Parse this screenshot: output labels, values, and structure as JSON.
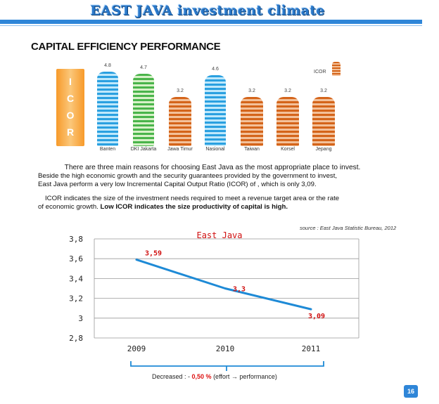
{
  "header": {
    "title": "EAST JAVA investment climate"
  },
  "section_title": "CAPITAL EFFICIENCY PERFORMANCE",
  "icor_strip": {
    "letters": [
      "I",
      "C",
      "O",
      "R"
    ]
  },
  "buildings": {
    "legend_label": "ICOR",
    "items": [
      {
        "name": "Banten",
        "value": "4.8",
        "kind": "blue",
        "v": 4.8
      },
      {
        "name": "DKI Jakarta",
        "value": "4.7",
        "kind": "green",
        "v": 4.7
      },
      {
        "name": "Jawa Timur",
        "value": "3.2",
        "kind": "orange",
        "v": 3.2
      },
      {
        "name": "Nasional",
        "value": "4.6",
        "kind": "blue",
        "v": 4.6
      },
      {
        "name": "Taiwan",
        "value": "3.2",
        "kind": "orange",
        "v": 3.2
      },
      {
        "name": "Korsel",
        "value": "3.2",
        "kind": "orange",
        "v": 3.2
      },
      {
        "name": "Jepang",
        "value": "3.2",
        "kind": "orange",
        "v": 3.2
      }
    ]
  },
  "paragraph1": {
    "line1": "There are three main reasons for choosing East Java as the most appropriate place to invest.",
    "line2": "Beside the high economic growth and the security guarantees provided by the government to invest,",
    "line3": "East Java perform a very low Incremental Capital Output Ratio (ICOR) of , which is only 3,09."
  },
  "paragraph2": {
    "line1": "ICOR indicates the size of the investment needs required to meet a revenue target area or the rate",
    "line2_normal": "of economic growth. ",
    "line2_bold": "Low ICOR indicates the size productivity of capital is high."
  },
  "source": "source : East Java Statistic Bureau, 2012",
  "chart_data": {
    "type": "line",
    "title": "East Java",
    "categories": [
      "2009",
      "2010",
      "2011"
    ],
    "series": [
      {
        "values": [
          3.59,
          3.3,
          3.09
        ]
      }
    ],
    "data_labels": [
      "3,59",
      "3,3",
      "3,09"
    ],
    "ylim": [
      2.8,
      3.8
    ],
    "yticks": [
      2.8,
      3.0,
      3.2,
      3.4,
      3.6,
      3.8
    ],
    "ytick_labels": [
      "2,8",
      "3",
      "3,2",
      "3,4",
      "3,6",
      "3,8"
    ],
    "grid": true,
    "colors": {
      "line": "#1e8ad6",
      "title": "#d01010",
      "labels": "#d01010"
    }
  },
  "decreased": {
    "prefix": "Decreased : - ",
    "value": "0,50 %",
    "suffix": " (effort → performance)"
  },
  "page_number": "16"
}
